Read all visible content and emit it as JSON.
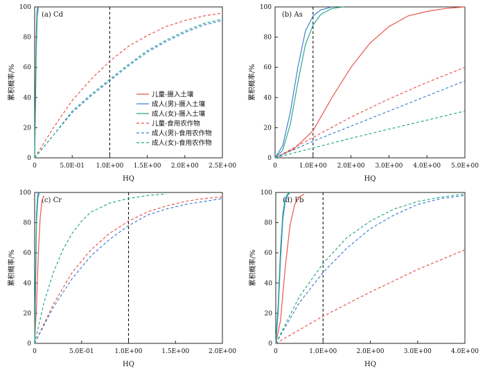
{
  "chart_data": [
    {
      "type": "line",
      "panel_label": "(a) Cd",
      "xlabel": "HQ",
      "ylabel": "累积概率/%",
      "xlim": [
        0,
        2.5
      ],
      "ylim": [
        0,
        100
      ],
      "x_ticks": [
        "0",
        "5.0E-01",
        "1.0E+00",
        "1.5E+00",
        "2.0E+00",
        "2.5E+00"
      ],
      "x_tick_values": [
        0,
        0.5,
        1.0,
        1.5,
        2.0,
        2.5
      ],
      "y_ticks": [
        "0",
        "20",
        "40",
        "60",
        "80",
        "100"
      ],
      "y_tick_values": [
        0,
        20,
        40,
        60,
        80,
        100
      ],
      "reference_line_x": 1.0,
      "legend": {
        "placement": "center-right",
        "entries": [
          "儿童-摄入土壤",
          "成人(男)-摄入土壤",
          "成人(女)-摄入土壤",
          "儿童-食用农作物",
          "成人(男)-食用农作物",
          "成人(女)-食用农作物"
        ]
      },
      "series": [
        {
          "name": "儿童-摄入土壤",
          "color": "#e8554a",
          "style": "solid",
          "x": [
            0,
            0.01,
            0.02,
            0.03,
            0.04
          ],
          "y": [
            0,
            40,
            80,
            96,
            100
          ]
        },
        {
          "name": "成人(男)-摄入土壤",
          "color": "#3f7fd1",
          "style": "solid",
          "x": [
            0,
            0.01,
            0.02,
            0.03,
            0.04
          ],
          "y": [
            0,
            35,
            75,
            95,
            100
          ]
        },
        {
          "name": "成人(女)-摄入土壤",
          "color": "#27a88a",
          "style": "solid",
          "x": [
            0,
            0.01,
            0.02,
            0.035,
            0.05
          ],
          "y": [
            0,
            30,
            68,
            94,
            100
          ]
        },
        {
          "name": "儿童-食用农作物",
          "color": "#e8554a",
          "style": "dashed",
          "x": [
            0,
            0.25,
            0.5,
            0.75,
            1.0,
            1.25,
            1.5,
            1.75,
            2.0,
            2.25,
            2.5
          ],
          "y": [
            0,
            20,
            38,
            52,
            64,
            74,
            81,
            87,
            91,
            94,
            96
          ]
        },
        {
          "name": "成人(男)-食用农作物",
          "color": "#3f7fd1",
          "style": "dashed",
          "x": [
            0,
            0.25,
            0.5,
            0.75,
            1.0,
            1.25,
            1.5,
            1.75,
            2.0,
            2.25,
            2.5
          ],
          "y": [
            0,
            15,
            30,
            41,
            51,
            61,
            70,
            77,
            83,
            88,
            91
          ]
        },
        {
          "name": "成人(女)-食用农作物",
          "color": "#27a88a",
          "style": "dashed",
          "x": [
            0,
            0.25,
            0.5,
            0.75,
            1.0,
            1.25,
            1.5,
            1.75,
            2.0,
            2.25,
            2.5
          ],
          "y": [
            0,
            15,
            31,
            42,
            52,
            62,
            71,
            78,
            84,
            89,
            92
          ]
        }
      ]
    },
    {
      "type": "line",
      "panel_label": "(b) As",
      "xlabel": "HQ",
      "ylabel": "累积概率/%",
      "xlim": [
        0,
        5.0
      ],
      "ylim": [
        0,
        100
      ],
      "x_ticks": [
        "0",
        "1.0E+00",
        "2.0E+00",
        "3.0E+00",
        "4.0E+00",
        "5.0E+00"
      ],
      "x_tick_values": [
        0,
        1.0,
        2.0,
        3.0,
        4.0,
        5.0
      ],
      "y_ticks": [
        "0",
        "20",
        "40",
        "60",
        "80",
        "100"
      ],
      "y_tick_values": [
        0,
        20,
        40,
        60,
        80,
        100
      ],
      "reference_line_x": 1.0,
      "series": [
        {
          "name": "儿童-摄入土壤",
          "color": "#e8554a",
          "style": "solid",
          "x": [
            0,
            0.5,
            1.0,
            1.5,
            2.0,
            2.5,
            3.0,
            3.5,
            4.0,
            4.5,
            5.0
          ],
          "y": [
            0,
            6,
            18,
            40,
            60,
            76,
            87,
            94,
            97,
            99,
            100
          ]
        },
        {
          "name": "成人(男)-摄入土壤",
          "color": "#3f7fd1",
          "style": "solid",
          "x": [
            0,
            0.2,
            0.4,
            0.6,
            0.8,
            1.0,
            1.2,
            1.5
          ],
          "y": [
            0,
            8,
            30,
            60,
            84,
            94,
            98,
            100
          ]
        },
        {
          "name": "成人(女)-摄入土壤",
          "color": "#27a88a",
          "style": "solid",
          "x": [
            0,
            0.2,
            0.4,
            0.6,
            0.8,
            1.0,
            1.2,
            1.5,
            1.8
          ],
          "y": [
            0,
            5,
            22,
            50,
            75,
            88,
            95,
            99,
            100
          ]
        },
        {
          "name": "儿童-食用农作物",
          "color": "#e8554a",
          "style": "dashed",
          "x": [
            0,
            1.0,
            2.0,
            3.0,
            4.0,
            5.0
          ],
          "y": [
            0,
            13.5,
            27,
            39,
            50,
            60
          ]
        },
        {
          "name": "成人(男)-食用农作物",
          "color": "#3f7fd1",
          "style": "dashed",
          "x": [
            0,
            1.0,
            2.0,
            3.0,
            4.0,
            5.0
          ],
          "y": [
            0,
            11,
            21,
            31,
            41,
            51
          ]
        },
        {
          "name": "成人(女)-食用农作物",
          "color": "#27a88a",
          "style": "dashed",
          "x": [
            0,
            1.0,
            2.0,
            3.0,
            4.0,
            5.0
          ],
          "y": [
            0,
            6.5,
            13,
            19,
            25,
            31
          ]
        }
      ]
    },
    {
      "type": "line",
      "panel_label": "(c) Cr",
      "xlabel": "HQ",
      "ylabel": "累积概率/%",
      "xlim": [
        0,
        2.0
      ],
      "ylim": [
        0,
        100
      ],
      "x_ticks": [
        "0",
        "5.0E-01",
        "1.0E+00",
        "1.5E+00",
        "2.0E+00"
      ],
      "x_tick_values": [
        0,
        0.5,
        1.0,
        1.5,
        2.0
      ],
      "y_ticks": [
        "0",
        "20",
        "40",
        "60",
        "80",
        "100"
      ],
      "y_tick_values": [
        0,
        20,
        40,
        60,
        80,
        100
      ],
      "reference_line_x": 1.0,
      "series": [
        {
          "name": "儿童-摄入土壤",
          "color": "#e8554a",
          "style": "solid",
          "x": [
            0,
            0.02,
            0.04,
            0.06,
            0.08,
            0.1
          ],
          "y": [
            0,
            25,
            60,
            84,
            95,
            98
          ]
        },
        {
          "name": "成人(男)-摄入土壤",
          "color": "#3f7fd1",
          "style": "solid",
          "x": [
            0,
            0.01,
            0.02,
            0.03,
            0.04
          ],
          "y": [
            0,
            45,
            85,
            97,
            100
          ]
        },
        {
          "name": "成人(女)-摄入土壤",
          "color": "#27a88a",
          "style": "solid",
          "x": [
            0,
            0.01,
            0.02,
            0.035,
            0.05
          ],
          "y": [
            0,
            40,
            80,
            96,
            100
          ]
        },
        {
          "name": "儿童-食用农作物",
          "color": "#e8554a",
          "style": "dashed",
          "x": [
            0,
            0.2,
            0.4,
            0.6,
            0.8,
            1.0,
            1.2,
            1.4,
            1.6,
            1.8,
            2.0
          ],
          "y": [
            0,
            26,
            47,
            62,
            73,
            81,
            87,
            91,
            94,
            96,
            97
          ]
        },
        {
          "name": "成人(男)-食用农作物",
          "color": "#3f7fd1",
          "style": "dashed",
          "x": [
            0,
            0.2,
            0.4,
            0.6,
            0.8,
            1.0,
            1.2,
            1.4,
            1.6,
            1.8,
            2.0
          ],
          "y": [
            0,
            24,
            43,
            58,
            69,
            78,
            85,
            89,
            92,
            94,
            96
          ]
        },
        {
          "name": "成人(女)-食用农作物",
          "color": "#27a88a",
          "style": "dashed",
          "x": [
            0,
            0.1,
            0.2,
            0.3,
            0.4,
            0.5,
            0.6,
            0.8,
            1.0,
            1.2,
            1.4
          ],
          "y": [
            0,
            27,
            47,
            62,
            73,
            81,
            87,
            93,
            96,
            98,
            99
          ]
        }
      ]
    },
    {
      "type": "line",
      "panel_label": "(d) Pb",
      "xlabel": "HQ",
      "ylabel": "累积概率/%",
      "xlim": [
        0,
        4.0
      ],
      "ylim": [
        0,
        100
      ],
      "x_ticks": [
        "0",
        "1.0E+00",
        "2.0E+00",
        "3.0E+00",
        "4.0E+00"
      ],
      "x_tick_values": [
        0,
        1.0,
        2.0,
        3.0,
        4.0
      ],
      "y_ticks": [
        "0",
        "20",
        "40",
        "60",
        "80",
        "100"
      ],
      "y_tick_values": [
        0,
        20,
        40,
        60,
        80,
        100
      ],
      "reference_line_x": 1.0,
      "series": [
        {
          "name": "儿童-摄入土壤",
          "color": "#e8554a",
          "style": "solid",
          "x": [
            0,
            0.1,
            0.2,
            0.3,
            0.4,
            0.5,
            0.6
          ],
          "y": [
            0,
            15,
            50,
            78,
            92,
            97,
            99
          ]
        },
        {
          "name": "成人(男)-摄入土壤",
          "color": "#3f7fd1",
          "style": "solid",
          "x": [
            0,
            0.05,
            0.1,
            0.15,
            0.2,
            0.25,
            0.3
          ],
          "y": [
            0,
            20,
            55,
            82,
            94,
            98,
            100
          ]
        },
        {
          "name": "成人(女)-摄入土壤",
          "color": "#27a88a",
          "style": "solid",
          "x": [
            0,
            0.05,
            0.1,
            0.15,
            0.2,
            0.25,
            0.3
          ],
          "y": [
            0,
            25,
            62,
            86,
            96,
            99,
            100
          ]
        },
        {
          "name": "儿童-食用农作物",
          "color": "#e8554a",
          "style": "dashed",
          "x": [
            0,
            1.0,
            2.0,
            3.0,
            4.0
          ],
          "y": [
            0,
            18,
            34,
            49,
            62
          ]
        },
        {
          "name": "成人(男)-食用农作物",
          "color": "#3f7fd1",
          "style": "dashed",
          "x": [
            0,
            0.5,
            1.0,
            1.5,
            2.0,
            2.5,
            3.0,
            3.5,
            4.0
          ],
          "y": [
            0,
            27,
            47,
            63,
            76,
            85,
            92,
            96,
            98
          ]
        },
        {
          "name": "成人(女)-食用农作物",
          "color": "#27a88a",
          "style": "dashed",
          "x": [
            0,
            0.5,
            1.0,
            1.5,
            2.0,
            2.5,
            3.0,
            3.5,
            4.0
          ],
          "y": [
            0,
            31,
            53,
            70,
            81,
            89,
            94,
            97,
            99
          ]
        }
      ]
    }
  ]
}
